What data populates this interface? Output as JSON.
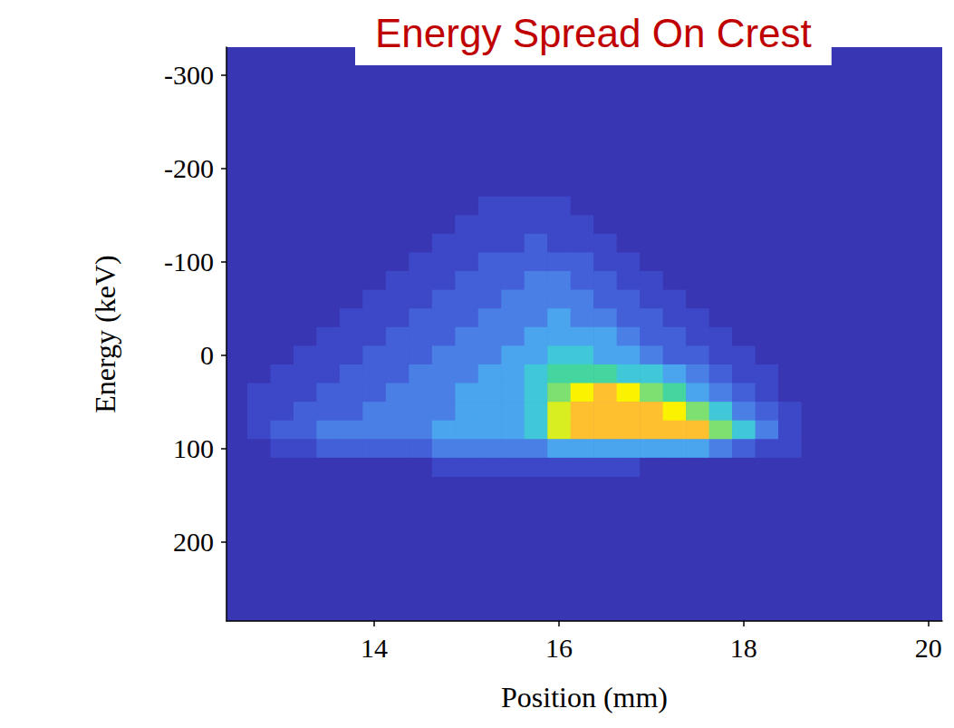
{
  "chart_data": {
    "type": "heatmap",
    "title": "Energy Spread On Crest",
    "x_label": "Position (mm)",
    "y_label": "Energy (keV)",
    "xlim": [
      12.4,
      20.15
    ],
    "xticks": [
      14,
      16,
      18,
      20
    ],
    "ylim": [
      -330,
      285
    ],
    "yticks": [
      -300,
      -200,
      -100,
      0,
      100,
      200
    ],
    "grid": false,
    "x": [
      12.75,
      13.0,
      13.25,
      13.5,
      13.75,
      14.0,
      14.25,
      14.5,
      14.75,
      15.0,
      15.25,
      15.5,
      15.75,
      16.0,
      16.25,
      16.5,
      16.75,
      17.0,
      17.25,
      17.5,
      17.75,
      18.0,
      18.25,
      18.5,
      18.75,
      19.0
    ],
    "y": [
      -180,
      -160,
      -140,
      -120,
      -100,
      -80,
      -60,
      -40,
      -20,
      0,
      20,
      40,
      60,
      80,
      100,
      120
    ],
    "z": [
      [
        0,
        0,
        0,
        0,
        0,
        0,
        0,
        0,
        0,
        0,
        0,
        0,
        0,
        0,
        0,
        0,
        0,
        0,
        0,
        0,
        0,
        0,
        0,
        0,
        0,
        0
      ],
      [
        0,
        0,
        0,
        0,
        0,
        0,
        0,
        0,
        0,
        0,
        1,
        1,
        1,
        1,
        0,
        0,
        0,
        0,
        0,
        0,
        0,
        0,
        0,
        0,
        0,
        0
      ],
      [
        0,
        0,
        0,
        0,
        0,
        0,
        0,
        0,
        0,
        1,
        1,
        1,
        1,
        1,
        1,
        0,
        0,
        0,
        0,
        0,
        0,
        0,
        0,
        0,
        0,
        0
      ],
      [
        0,
        0,
        0,
        0,
        0,
        0,
        0,
        0,
        1,
        1,
        1,
        1,
        2,
        1,
        1,
        1,
        0,
        0,
        0,
        0,
        0,
        0,
        0,
        0,
        0,
        0
      ],
      [
        0,
        0,
        0,
        0,
        0,
        0,
        0,
        1,
        1,
        1,
        2,
        2,
        2,
        2,
        2,
        1,
        1,
        0,
        0,
        0,
        0,
        0,
        0,
        0,
        0,
        0
      ],
      [
        0,
        0,
        0,
        0,
        0,
        0,
        1,
        1,
        1,
        2,
        2,
        2,
        3,
        3,
        2,
        2,
        1,
        1,
        0,
        0,
        0,
        0,
        0,
        0,
        0,
        0
      ],
      [
        0,
        0,
        0,
        0,
        0,
        1,
        1,
        1,
        2,
        2,
        2,
        3,
        3,
        3,
        3,
        2,
        2,
        1,
        1,
        0,
        0,
        0,
        0,
        0,
        0,
        0
      ],
      [
        0,
        0,
        0,
        0,
        1,
        1,
        1,
        2,
        2,
        2,
        3,
        3,
        3,
        4,
        3,
        3,
        2,
        2,
        1,
        1,
        0,
        0,
        0,
        0,
        0,
        0
      ],
      [
        0,
        0,
        0,
        1,
        1,
        1,
        2,
        2,
        2,
        3,
        3,
        3,
        4,
        4,
        4,
        4,
        3,
        2,
        2,
        1,
        1,
        0,
        0,
        0,
        0,
        0
      ],
      [
        0,
        0,
        1,
        1,
        1,
        2,
        2,
        2,
        3,
        3,
        3,
        4,
        4,
        5,
        5,
        4,
        4,
        3,
        2,
        2,
        1,
        1,
        0,
        0,
        0,
        0
      ],
      [
        0,
        1,
        1,
        1,
        2,
        2,
        2,
        3,
        3,
        3,
        4,
        4,
        5,
        6,
        6,
        6,
        5,
        5,
        4,
        3,
        2,
        1,
        1,
        0,
        0,
        0
      ],
      [
        1,
        1,
        1,
        2,
        2,
        2,
        3,
        3,
        3,
        4,
        4,
        4,
        5,
        7,
        9,
        10,
        9,
        7,
        6,
        4,
        3,
        2,
        1,
        0,
        0,
        0
      ],
      [
        1,
        1,
        2,
        2,
        2,
        3,
        3,
        3,
        3,
        4,
        4,
        4,
        5,
        8,
        10,
        10,
        10,
        10,
        9,
        7,
        5,
        3,
        2,
        1,
        0,
        0
      ],
      [
        1,
        2,
        2,
        3,
        3,
        3,
        3,
        3,
        4,
        4,
        4,
        4,
        5,
        8,
        10,
        10,
        10,
        10,
        10,
        10,
        7,
        5,
        3,
        1,
        0,
        0
      ],
      [
        0,
        1,
        1,
        2,
        2,
        2,
        2,
        2,
        3,
        3,
        3,
        3,
        3,
        4,
        4,
        4,
        4,
        4,
        4,
        4,
        3,
        2,
        1,
        1,
        0,
        0
      ],
      [
        0,
        0,
        0,
        0,
        0,
        0,
        0,
        0,
        1,
        1,
        1,
        1,
        1,
        1,
        1,
        1,
        1,
        0,
        0,
        0,
        0,
        0,
        0,
        0,
        0,
        0
      ]
    ]
  }
}
